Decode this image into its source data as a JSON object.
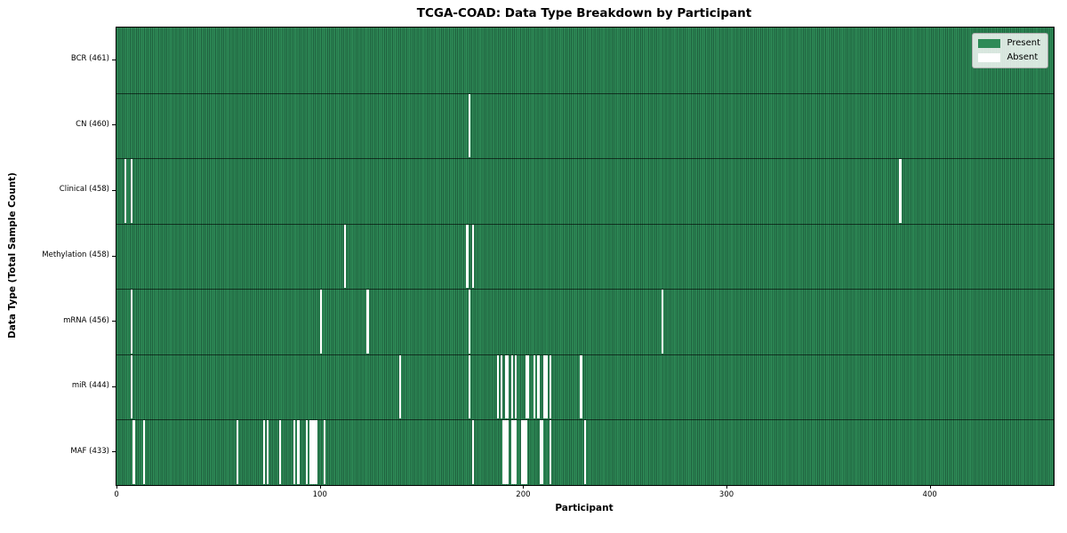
{
  "chart_data": {
    "type": "heatmap",
    "title": "TCGA-COAD: Data Type Breakdown by Participant",
    "xlabel": "Participant",
    "ylabel": "Data Type (Total Sample Count)",
    "x_ticks": [
      0,
      100,
      200,
      300,
      400
    ],
    "x_range": [
      -0.5,
      460.5
    ],
    "n_participants": 461,
    "grid": false,
    "legend": {
      "position": "upper right",
      "items": [
        {
          "label": "Present",
          "color": "#2e8b57"
        },
        {
          "label": "Absent",
          "color": "#ffffff"
        }
      ]
    },
    "colors": {
      "present_fill": "#2e8b57",
      "present_edge": "#1f603e",
      "absent_fill": "#ffffff",
      "separator": "#000000"
    },
    "rows": [
      {
        "label": "BCR (461)",
        "data_type": "BCR",
        "total": 461,
        "absent_participants": []
      },
      {
        "label": "CN (460)",
        "data_type": "CN",
        "total": 460,
        "absent_participants": [
          173
        ]
      },
      {
        "label": "Clinical (458)",
        "data_type": "Clinical",
        "total": 458,
        "absent_participants": [
          4,
          7,
          385
        ]
      },
      {
        "label": "Methylation (458)",
        "data_type": "Methylation",
        "total": 458,
        "absent_participants": [
          112,
          172,
          175
        ]
      },
      {
        "label": "mRNA (456)",
        "data_type": "mRNA",
        "total": 456,
        "absent_participants": [
          7,
          100,
          123,
          173,
          268
        ]
      },
      {
        "label": "miR (444)",
        "data_type": "miR",
        "total": 444,
        "absent_participants": [
          7,
          139,
          173,
          187,
          189,
          191,
          192,
          194,
          196,
          201,
          202,
          205,
          207,
          210,
          211,
          213,
          228
        ]
      },
      {
        "label": "MAF (433)",
        "data_type": "MAF",
        "total": 433,
        "absent_participants": [
          8,
          13,
          59,
          72,
          74,
          80,
          87,
          89,
          93,
          95,
          96,
          97,
          98,
          102,
          175,
          190,
          191,
          192,
          194,
          195,
          196,
          199,
          200,
          201,
          208,
          209,
          213,
          230
        ]
      }
    ]
  }
}
